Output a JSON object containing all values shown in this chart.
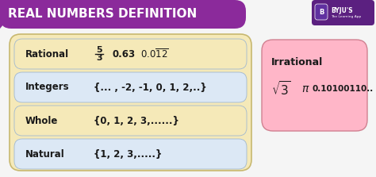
{
  "bg_color": "#f5f5f5",
  "header_bg": "#8b2a9b",
  "header_text": "REAL NUMBERS DEFINITION",
  "header_text_color": "#ffffff",
  "header_fontsize": 11,
  "outer_box_color": "#f5e9b8",
  "inner_box_color": "#dce8f5",
  "outer_border_color": "#c8b870",
  "inner_border_color": "#a0b8d0",
  "rational_label": "Rational",
  "integers_label": "Integers",
  "integers_examples": "{... , -2, -1, 0, 1, 2,..}",
  "whole_label": "Whole",
  "whole_examples": "{0, 1, 2, 3,......}",
  "natural_label": "Natural",
  "natural_examples": "{1, 2, 3,.....}",
  "irrational_box_color": "#ffb6c8",
  "irrational_border_color": "#d08090",
  "irrational_label": "Irrational",
  "label_fontsize": 8.5,
  "label_color": "#1a1a1a",
  "byju_box_color": "#5b2080"
}
